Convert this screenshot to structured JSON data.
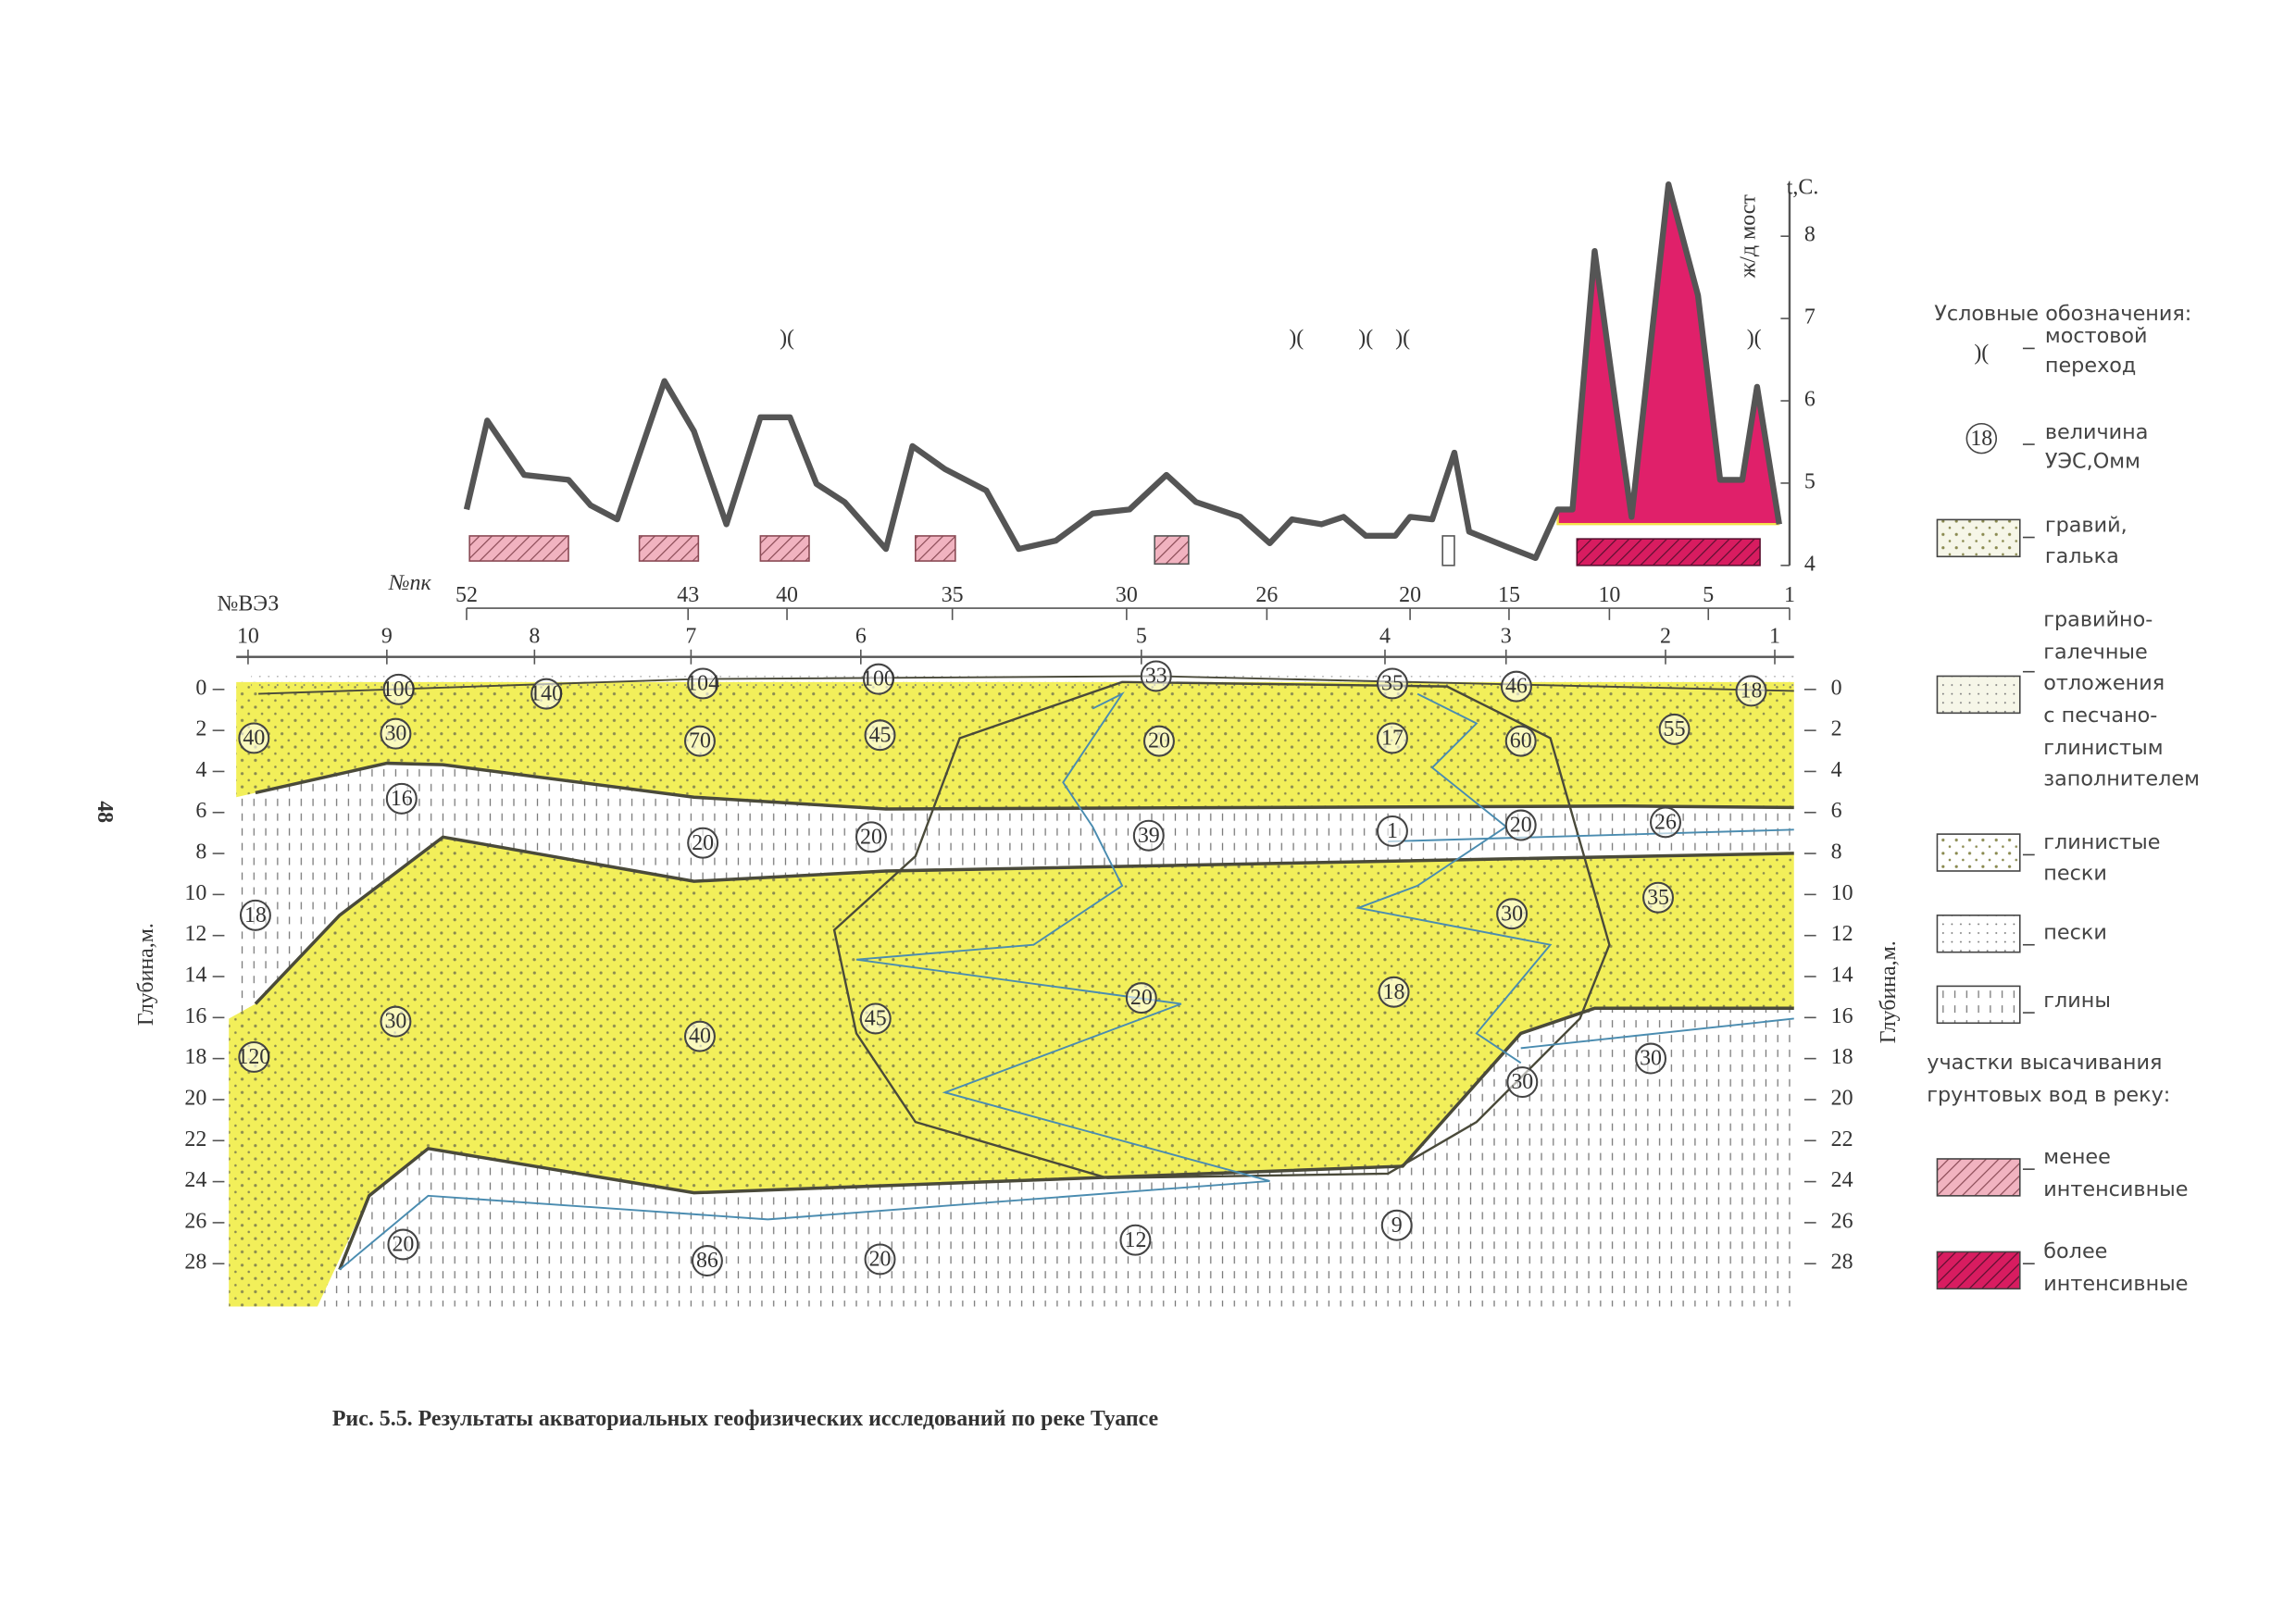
{
  "page_number": "48",
  "caption": "Рис.  5.5.  Результаты акваториальных геофизических исследований по реке Туапсе",
  "temperature": {
    "axis_label": "t,C.",
    "bridge_label": "ж/д мост",
    "ylim": [
      4,
      8
    ],
    "yticks": [
      4,
      5,
      6,
      7,
      8
    ],
    "values": [
      4.68,
      5.76,
      5.1,
      5.04,
      4.73,
      4.56,
      6.24,
      5.63,
      4.5,
      5.8,
      5.8,
      4.99,
      4.77,
      4.2,
      5.45,
      5.17,
      4.91,
      4.2,
      4.3,
      4.63,
      4.68,
      5.1,
      4.77,
      4.59,
      4.27,
      4.56,
      4.5,
      4.59,
      4.36,
      4.36,
      4.59,
      4.56,
      5.37,
      4.41,
      4.23,
      4.09,
      4.68,
      4.68,
      7.82,
      5.85,
      4.59,
      8.63,
      7.28,
      5.04,
      5.04,
      6.17,
      4.5
    ]
  },
  "bridge_symbols": [
    ")(",
    ")(",
    ")(",
    ")(",
    ")("
  ],
  "pickets": {
    "label": "№пк",
    "values": [
      "52",
      "43",
      "40",
      "35",
      "30",
      "26",
      "20",
      "15",
      "10",
      "5",
      "1"
    ]
  },
  "ves": {
    "label": "№ВЭЗ",
    "values": [
      "10",
      "9",
      "8",
      "7",
      "6",
      "5",
      "4",
      "3",
      "2",
      "1"
    ]
  },
  "depth": {
    "axis_label": "Глубина,м.",
    "ylim": [
      0,
      28
    ],
    "yticks": [
      0,
      2,
      4,
      6,
      8,
      10,
      12,
      14,
      16,
      18,
      20,
      22,
      24,
      26,
      28
    ]
  },
  "resistivity_labels": [
    "100",
    "140",
    "104",
    "100",
    "33",
    "35",
    "46",
    "18",
    "40",
    "30",
    "70",
    "45",
    "20",
    "17",
    "60",
    "55",
    "16",
    "20",
    "20",
    "39",
    "1",
    "20",
    "26",
    "18",
    "30",
    "35",
    "30",
    "40",
    "45",
    "20",
    "18",
    "120",
    "30",
    "30",
    "20",
    "86",
    "20",
    "12",
    "9"
  ],
  "legend": {
    "title": "Условные обозначения:",
    "items": [
      {
        "symbol": ")(",
        "lines": [
          "мостовой",
          "переход"
        ]
      },
      {
        "symbol": "18",
        "lines": [
          "величина",
          "УЭС,Омм"
        ]
      },
      {
        "lines": [
          "гравий,",
          "галька"
        ]
      },
      {
        "lines": [
          "гравийно-",
          "галечные",
          "отложения",
          "с песчано-",
          "глинистым",
          "заполнителем"
        ]
      },
      {
        "lines": [
          "глинистые",
          "пески"
        ]
      },
      {
        "lines": [
          "пески"
        ]
      },
      {
        "lines": [
          "глины"
        ]
      },
      {
        "lines": [
          "менее",
          "интенсивные"
        ]
      },
      {
        "lines": [
          "более",
          "интенсивные"
        ]
      }
    ],
    "seepage_heading": [
      "участки высачивания",
      "грунтовых вод в реку:"
    ]
  }
}
